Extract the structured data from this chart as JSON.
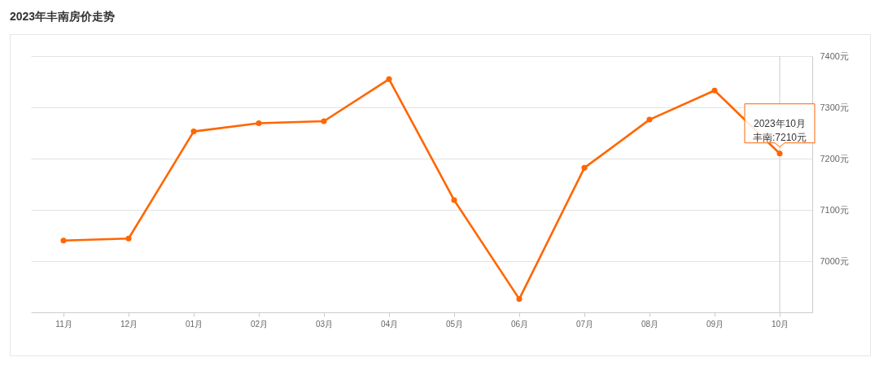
{
  "chart_data": {
    "type": "line",
    "title": "2023年丰南房价走势",
    "categories": [
      "11月",
      "12月",
      "01月",
      "02月",
      "03月",
      "04月",
      "05月",
      "06月",
      "07月",
      "08月",
      "09月",
      "10月"
    ],
    "series": [
      {
        "color": "#ff6600",
        "values": [
          7040,
          7044,
          7253,
          7269,
          7273,
          7355,
          7119,
          6926,
          7182,
          7276,
          7333,
          7210
        ]
      }
    ],
    "ylim": [
      6900,
      7400
    ],
    "yticks": [
      {
        "value": 7000,
        "label": "7000元"
      },
      {
        "value": 7100,
        "label": "7100元"
      },
      {
        "value": 7200,
        "label": "7200元"
      },
      {
        "value": 7300,
        "label": "7300元"
      },
      {
        "value": 7400,
        "label": "7400元"
      }
    ],
    "grid": "y",
    "marker": "circle",
    "line_style": "solid",
    "annotations": [
      {
        "text": "2023年10月",
        "x": "10月",
        "y": 7210
      },
      {
        "text": "丰南:7210元",
        "x": "10月",
        "y": 7210
      }
    ],
    "ref_lines": [
      {
        "axis": "x",
        "value": "10月",
        "color": "#cccccc"
      }
    ]
  }
}
